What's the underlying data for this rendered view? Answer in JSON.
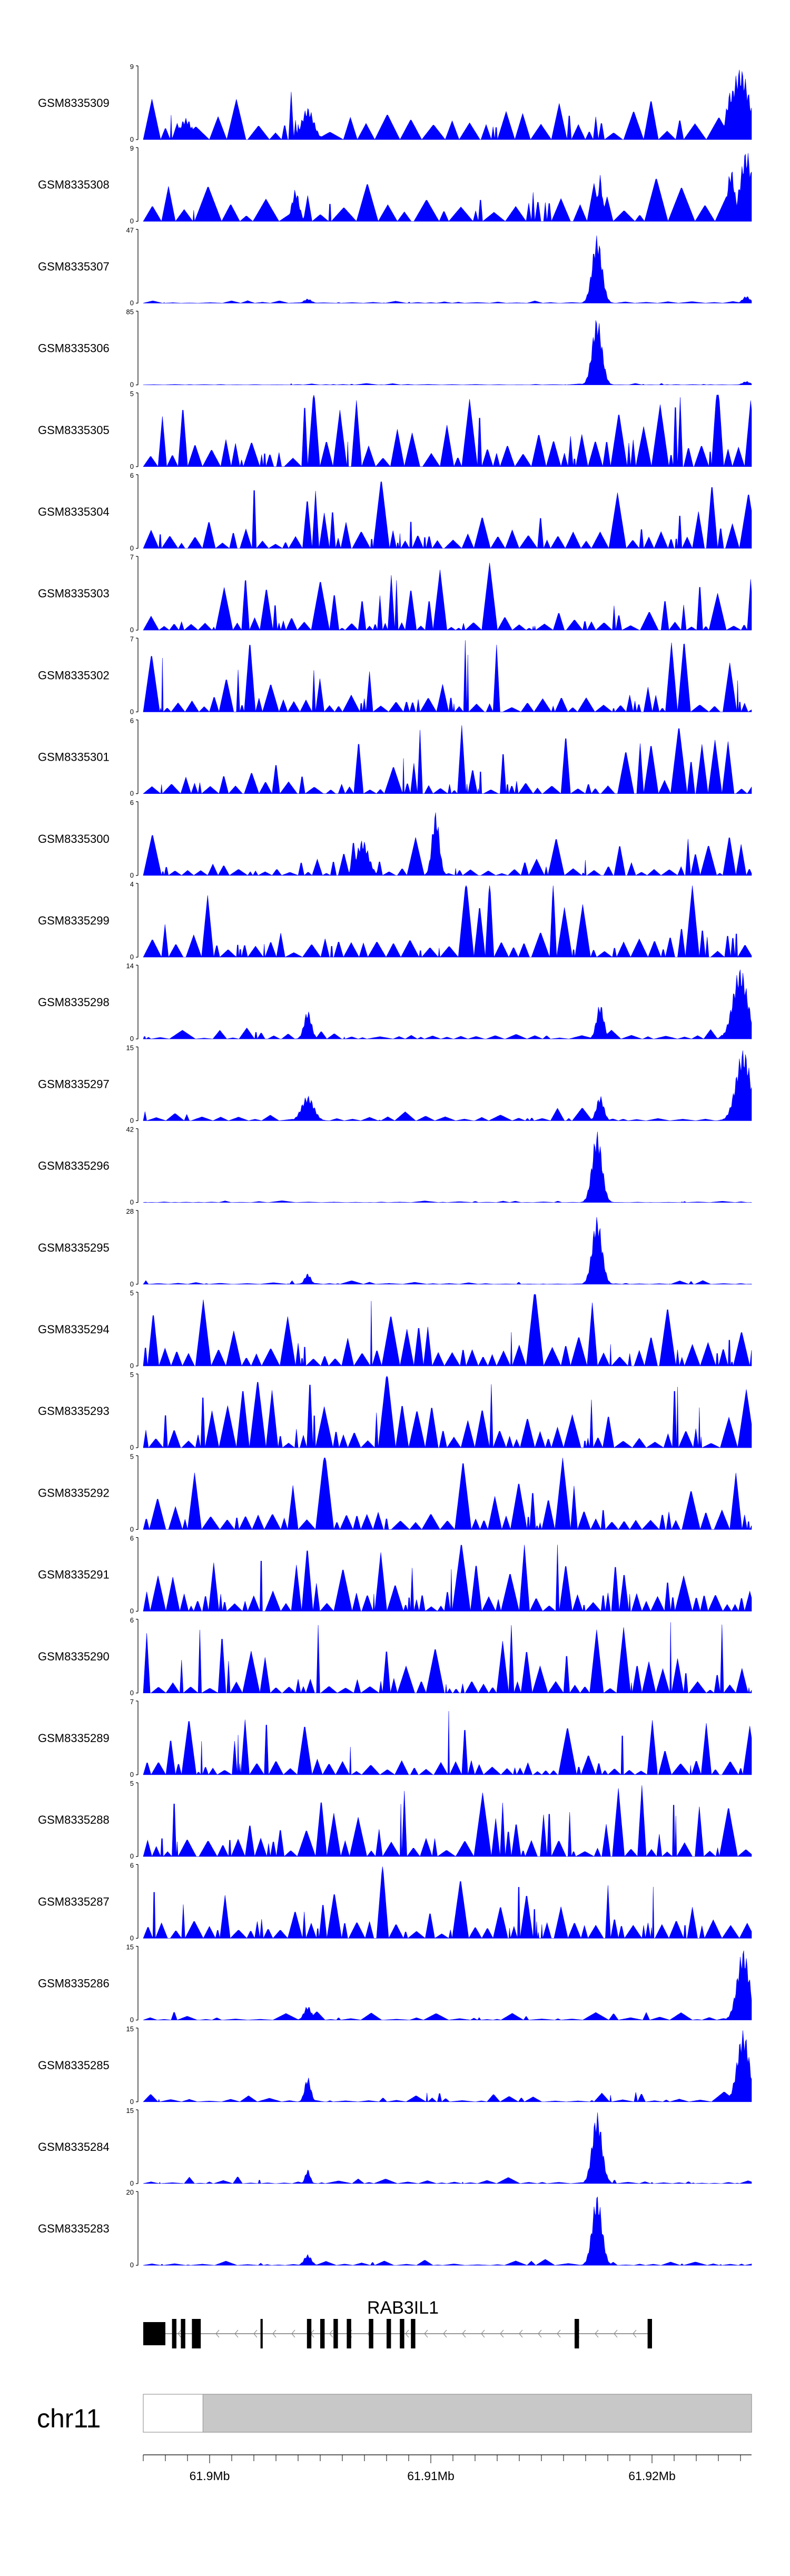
{
  "chart_data": {
    "type": "area",
    "title": "",
    "xlabel": "",
    "ylabel": "",
    "color": "#0000ff",
    "x_range_mb": [
      61.897,
      61.9245
    ],
    "tracks": [
      {
        "name": "GSM8335309",
        "ymax": "9",
        "ymin": "0",
        "peak_value": 9,
        "peaks": [
          [
            0.98,
            1.0,
            0.015
          ],
          [
            0.965,
            0.7,
            0.008
          ],
          [
            0.27,
            0.45,
            0.01
          ],
          [
            0.07,
            0.3,
            0.01
          ]
        ],
        "baseline": 0.25,
        "noise": 0.45,
        "density": 3
      },
      {
        "name": "GSM8335308",
        "ymax": "9",
        "ymin": "0",
        "peak_value": 9,
        "peaks": [
          [
            0.99,
            1.0,
            0.01
          ],
          [
            0.965,
            0.75,
            0.006
          ],
          [
            0.75,
            0.65,
            0.004
          ],
          [
            0.25,
            0.45,
            0.006
          ]
        ],
        "baseline": 0.2,
        "noise": 0.5,
        "density": 3
      },
      {
        "name": "GSM8335307",
        "ymax": "47",
        "ymin": "0",
        "peak_value": 47,
        "peaks": [
          [
            0.745,
            0.95,
            0.008
          ],
          [
            0.99,
            0.1,
            0.006
          ],
          [
            0.27,
            0.06,
            0.006
          ]
        ],
        "baseline": 0.01,
        "noise": 0.03,
        "density": 3
      },
      {
        "name": "GSM8335306",
        "ymax": "85",
        "ymin": "0",
        "peak_value": 85,
        "peaks": [
          [
            0.745,
            0.95,
            0.008
          ],
          [
            0.99,
            0.05,
            0.006
          ]
        ],
        "baseline": 0.005,
        "noise": 0.02,
        "density": 3
      },
      {
        "name": "GSM8335305",
        "ymax": "5",
        "ymin": "0",
        "peak_value": 5,
        "peaks": [],
        "baseline": 0.3,
        "noise": 0.95,
        "density": 2
      },
      {
        "name": "GSM8335304",
        "ymax": "6",
        "ymin": "0",
        "peak_value": 6,
        "peaks": [],
        "baseline": 0.2,
        "noise": 0.95,
        "density": 2
      },
      {
        "name": "GSM8335303",
        "ymax": "7",
        "ymin": "0",
        "peak_value": 7,
        "peaks": [],
        "baseline": 0.1,
        "noise": 0.95,
        "density": 2
      },
      {
        "name": "GSM8335302",
        "ymax": "7",
        "ymin": "0",
        "peak_value": 7,
        "peaks": [],
        "baseline": 0.15,
        "noise": 0.95,
        "density": 2
      },
      {
        "name": "GSM8335301",
        "ymax": "6",
        "ymin": "0",
        "peak_value": 6,
        "peaks": [],
        "baseline": 0.15,
        "noise": 0.95,
        "density": 2
      },
      {
        "name": "GSM8335300",
        "ymax": "6",
        "ymin": "0",
        "peak_value": 6,
        "peaks": [
          [
            0.48,
            0.9,
            0.006
          ],
          [
            0.36,
            0.5,
            0.01
          ]
        ],
        "baseline": 0.08,
        "noise": 0.55,
        "density": 2
      },
      {
        "name": "GSM8335299",
        "ymax": "4",
        "ymin": "0",
        "peak_value": 4,
        "peaks": [],
        "baseline": 0.2,
        "noise": 0.95,
        "density": 2
      },
      {
        "name": "GSM8335298",
        "ymax": "14",
        "ymin": "0",
        "peak_value": 14,
        "peaks": [
          [
            0.98,
            1.0,
            0.012
          ],
          [
            0.75,
            0.5,
            0.006
          ],
          [
            0.27,
            0.4,
            0.006
          ]
        ],
        "baseline": 0.04,
        "noise": 0.12,
        "density": 3
      },
      {
        "name": "GSM8335297",
        "ymax": "15",
        "ymin": "0",
        "peak_value": 15,
        "peaks": [
          [
            0.985,
            1.0,
            0.012
          ],
          [
            0.75,
            0.35,
            0.006
          ],
          [
            0.27,
            0.35,
            0.01
          ]
        ],
        "baseline": 0.04,
        "noise": 0.14,
        "density": 3
      },
      {
        "name": "GSM8335296",
        "ymax": "42",
        "ymin": "0",
        "peak_value": 42,
        "peaks": [
          [
            0.745,
            1.0,
            0.008
          ]
        ],
        "baseline": 0.005,
        "noise": 0.02,
        "density": 3
      },
      {
        "name": "GSM8335295",
        "ymax": "28",
        "ymin": "0",
        "peak_value": 28,
        "peaks": [
          [
            0.745,
            0.95,
            0.008
          ],
          [
            0.27,
            0.15,
            0.005
          ]
        ],
        "baseline": 0.01,
        "noise": 0.05,
        "density": 3
      },
      {
        "name": "GSM8335294",
        "ymax": "5",
        "ymin": "0",
        "peak_value": 5,
        "peaks": [],
        "baseline": 0.25,
        "noise": 0.9,
        "density": 2
      },
      {
        "name": "GSM8335293",
        "ymax": "5",
        "ymin": "0",
        "peak_value": 5,
        "peaks": [],
        "baseline": 0.2,
        "noise": 0.9,
        "density": 2
      },
      {
        "name": "GSM8335292",
        "ymax": "5",
        "ymin": "0",
        "peak_value": 5,
        "peaks": [],
        "baseline": 0.2,
        "noise": 0.9,
        "density": 2
      },
      {
        "name": "GSM8335291",
        "ymax": "6",
        "ymin": "0",
        "peak_value": 6,
        "peaks": [],
        "baseline": 0.2,
        "noise": 0.9,
        "density": 2
      },
      {
        "name": "GSM8335290",
        "ymax": "6",
        "ymin": "0",
        "peak_value": 6,
        "peaks": [],
        "baseline": 0.15,
        "noise": 0.9,
        "density": 2
      },
      {
        "name": "GSM8335289",
        "ymax": "7",
        "ymin": "0",
        "peak_value": 7,
        "peaks": [],
        "baseline": 0.15,
        "noise": 0.85,
        "density": 2
      },
      {
        "name": "GSM8335288",
        "ymax": "5",
        "ymin": "0",
        "peak_value": 5,
        "peaks": [],
        "baseline": 0.2,
        "noise": 0.9,
        "density": 2
      },
      {
        "name": "GSM8335287",
        "ymax": "6",
        "ymin": "0",
        "peak_value": 6,
        "peaks": [],
        "baseline": 0.2,
        "noise": 0.9,
        "density": 2
      },
      {
        "name": "GSM8335286",
        "ymax": "15",
        "ymin": "0",
        "peak_value": 15,
        "peaks": [
          [
            0.985,
            1.0,
            0.01
          ],
          [
            0.27,
            0.2,
            0.006
          ]
        ],
        "baseline": 0.03,
        "noise": 0.12,
        "density": 3
      },
      {
        "name": "GSM8335285",
        "ymax": "15",
        "ymin": "0",
        "peak_value": 15,
        "peaks": [
          [
            0.985,
            1.0,
            0.01
          ],
          [
            0.27,
            0.35,
            0.005
          ]
        ],
        "baseline": 0.03,
        "noise": 0.12,
        "density": 3
      },
      {
        "name": "GSM8335284",
        "ymax": "15",
        "ymin": "0",
        "peak_value": 15,
        "peaks": [
          [
            0.745,
            1.0,
            0.008
          ],
          [
            0.27,
            0.2,
            0.004
          ]
        ],
        "baseline": 0.02,
        "noise": 0.08,
        "density": 3
      },
      {
        "name": "GSM8335283",
        "ymax": "20",
        "ymin": "0",
        "peak_value": 20,
        "peaks": [
          [
            0.745,
            1.0,
            0.008
          ],
          [
            0.27,
            0.15,
            0.006
          ]
        ],
        "baseline": 0.02,
        "noise": 0.06,
        "density": 3
      }
    ],
    "gene": {
      "name": "RAB3IL1",
      "strand": "-",
      "exons": [
        [
          61.897,
          61.898
        ],
        [
          61.8983,
          61.8985
        ],
        [
          61.8987,
          61.8989
        ],
        [
          61.8992,
          61.8996
        ],
        [
          61.9023,
          61.9024
        ],
        [
          61.9044,
          61.9046
        ],
        [
          61.905,
          61.9052
        ],
        [
          61.9056,
          61.9058
        ],
        [
          61.9062,
          61.9064
        ],
        [
          61.9072,
          61.9074
        ],
        [
          61.908,
          61.9082
        ],
        [
          61.9086,
          61.9088
        ],
        [
          61.9091,
          61.9093
        ],
        [
          61.9165,
          61.9167
        ],
        [
          61.9198,
          61.92
        ]
      ],
      "start_mb": 61.897,
      "end_mb": 61.92
    },
    "chromosome": {
      "label": "chr11",
      "highlight_range_mb": [
        61.8997,
        61.9245
      ],
      "ticks": [
        {
          "value": 61.9,
          "label": "61.9Mb"
        },
        {
          "value": 61.91,
          "label": "61.91Mb"
        },
        {
          "value": 61.92,
          "label": "61.92Mb"
        }
      ]
    }
  }
}
